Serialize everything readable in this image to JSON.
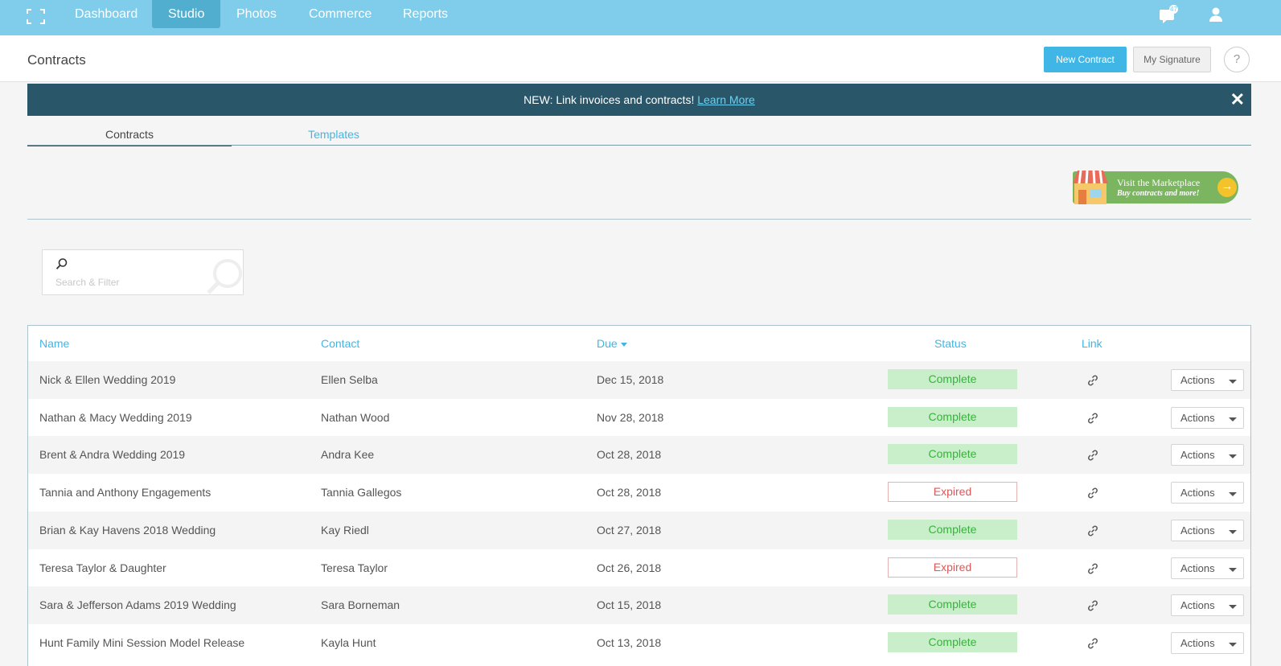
{
  "nav": {
    "items": [
      "Dashboard",
      "Studio",
      "Photos",
      "Commerce",
      "Reports"
    ],
    "active": "Studio",
    "chat_badge": "47"
  },
  "header": {
    "title": "Contracts",
    "new_contract": "New Contract",
    "my_signature": "My Signature",
    "help": "?"
  },
  "banner": {
    "text": "NEW: Link invoices and contracts! ",
    "link": "Learn More",
    "close": "✕"
  },
  "tabs": {
    "contracts": "Contracts",
    "templates": "Templates"
  },
  "marketplace": {
    "line1": "Visit the Marketplace",
    "line2": "Buy contracts and more!"
  },
  "search": {
    "placeholder": "Search & Filter"
  },
  "table": {
    "headers": {
      "name": "Name",
      "contact": "Contact",
      "due": "Due",
      "status": "Status",
      "link": "Link"
    },
    "rows": [
      {
        "name": "Nick & Ellen Wedding 2019",
        "contact": "Ellen Selba",
        "due": "Dec 15, 2018",
        "status": "Complete"
      },
      {
        "name": "Nathan & Macy Wedding 2019",
        "contact": "Nathan Wood",
        "due": "Nov 28, 2018",
        "status": "Complete"
      },
      {
        "name": "Brent & Andra Wedding 2019",
        "contact": "Andra Kee",
        "due": "Oct 28, 2018",
        "status": "Complete"
      },
      {
        "name": "Tannia and Anthony Engagements",
        "contact": "Tannia Gallegos",
        "due": "Oct 28, 2018",
        "status": "Expired"
      },
      {
        "name": "Brian & Kay Havens 2018 Wedding",
        "contact": "Kay Riedl",
        "due": "Oct 27, 2018",
        "status": "Complete"
      },
      {
        "name": "Teresa Taylor & Daughter",
        "contact": "Teresa Taylor",
        "due": "Oct 26, 2018",
        "status": "Expired"
      },
      {
        "name": "Sara & Jefferson Adams 2019 Wedding",
        "contact": "Sara Borneman",
        "due": "Oct 15, 2018",
        "status": "Complete"
      },
      {
        "name": "Hunt Family Mini Session Model Release",
        "contact": "Kayla Hunt",
        "due": "Oct 13, 2018",
        "status": "Complete"
      }
    ],
    "actions_label": "Actions"
  },
  "colors": {
    "nav_bg": "#7fcdea",
    "accent": "#3fb6e6",
    "banner_bg": "#295668",
    "complete": "#3ab03e",
    "expired": "#e05656"
  }
}
